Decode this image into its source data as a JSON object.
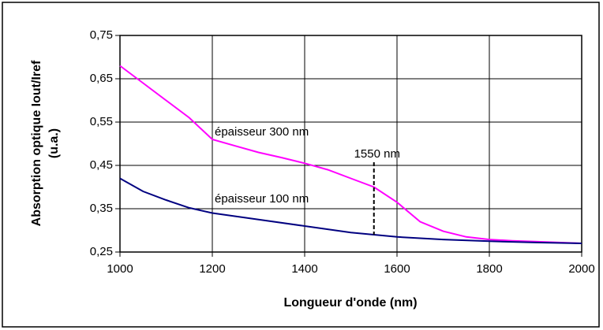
{
  "chart_data": {
    "type": "line",
    "xlabel": "Longueur d'onde (nm)",
    "ylabel": [
      "Absorption optique Iout/Iref",
      "(u.a.)"
    ],
    "series": [
      {
        "name": "épaisseur 300 nm",
        "color": "#ff00ff",
        "x": [
          1000,
          1050,
          1100,
          1150,
          1200,
          1250,
          1300,
          1350,
          1400,
          1450,
          1500,
          1550,
          1600,
          1650,
          1700,
          1750,
          1800,
          1850,
          1900,
          1950,
          2000
        ],
        "values": [
          0.68,
          0.64,
          0.6,
          0.56,
          0.51,
          0.495,
          0.48,
          0.468,
          0.455,
          0.44,
          0.42,
          0.4,
          0.365,
          0.32,
          0.298,
          0.285,
          0.279,
          0.276,
          0.274,
          0.272,
          0.27
        ]
      },
      {
        "name": "épaisseur 100 nm",
        "color": "#000080",
        "x": [
          1000,
          1050,
          1100,
          1150,
          1200,
          1300,
          1400,
          1500,
          1550,
          1600,
          1700,
          1800,
          1900,
          2000
        ],
        "values": [
          0.42,
          0.39,
          0.37,
          0.352,
          0.34,
          0.325,
          0.31,
          0.295,
          0.29,
          0.285,
          0.279,
          0.275,
          0.272,
          0.27
        ]
      }
    ],
    "vline": {
      "x": 1550,
      "label": "1550 nm"
    },
    "xlim": [
      1000,
      2000
    ],
    "xticks": [
      1000,
      1200,
      1400,
      1600,
      1800,
      2000
    ],
    "ylim": [
      0.25,
      0.75
    ],
    "yticks": [
      {
        "value": 0.25,
        "label": "0,25"
      },
      {
        "value": 0.35,
        "label": "0,35"
      },
      {
        "value": 0.45,
        "label": "0,45"
      },
      {
        "value": 0.55,
        "label": "0,55"
      },
      {
        "value": 0.65,
        "label": "0,65"
      },
      {
        "value": 0.75,
        "label": "0,75"
      }
    ],
    "grid": true
  }
}
